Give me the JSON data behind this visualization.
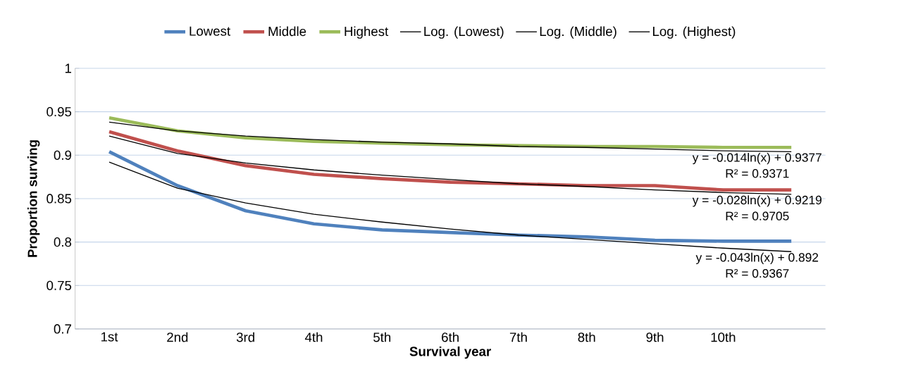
{
  "chart_data": {
    "type": "line",
    "xlabel": "Survival year",
    "ylabel": "Proportion surving",
    "categories": [
      "1st",
      "2nd",
      "3rd",
      "4th",
      "5th",
      "6th",
      "7th",
      "8th",
      "9th",
      "10th",
      null
    ],
    "series": [
      {
        "name": "Lowest",
        "color": "#4f81bd",
        "values": [
          0.904,
          0.865,
          0.836,
          0.821,
          0.814,
          0.811,
          0.808,
          0.806,
          0.802,
          0.801,
          0.801
        ]
      },
      {
        "name": "Middle",
        "color": "#c0504d",
        "values": [
          0.927,
          0.905,
          0.888,
          0.878,
          0.873,
          0.869,
          0.867,
          0.865,
          0.865,
          0.86,
          0.86
        ]
      },
      {
        "name": "Highest",
        "color": "#9bbb59",
        "values": [
          0.943,
          0.928,
          0.92,
          0.916,
          0.914,
          0.912,
          0.911,
          0.91,
          0.91,
          0.909,
          0.909
        ]
      },
      {
        "name": "Log. (Lowest)",
        "color": "#000000",
        "values": [
          0.892,
          0.862,
          0.845,
          0.832,
          0.823,
          0.815,
          0.808,
          0.803,
          0.798,
          0.793,
          0.789
        ]
      },
      {
        "name": "Log. (Middle)",
        "color": "#000000",
        "values": [
          0.922,
          0.902,
          0.891,
          0.883,
          0.877,
          0.872,
          0.867,
          0.864,
          0.86,
          0.857,
          0.855
        ]
      },
      {
        "name": "Log. (Highest)",
        "color": "#000000",
        "values": [
          0.938,
          0.928,
          0.922,
          0.918,
          0.915,
          0.913,
          0.91,
          0.909,
          0.907,
          0.905,
          0.904
        ]
      }
    ],
    "annotations": [
      "y = -0.014ln(x) + 0.9377",
      "R² = 0.9371",
      "y = -0.028ln(x) + 0.9219",
      "R² = 0.9705",
      "y = -0.043ln(x) + 0.892",
      "R² = 0.9367"
    ],
    "ylim": [
      0.7,
      1
    ],
    "yticks": [
      0.7,
      0.75,
      0.8,
      0.85,
      0.9,
      0.95,
      1
    ],
    "grid": "y",
    "legend": "top",
    "marker": "none",
    "line_style": "solid"
  }
}
